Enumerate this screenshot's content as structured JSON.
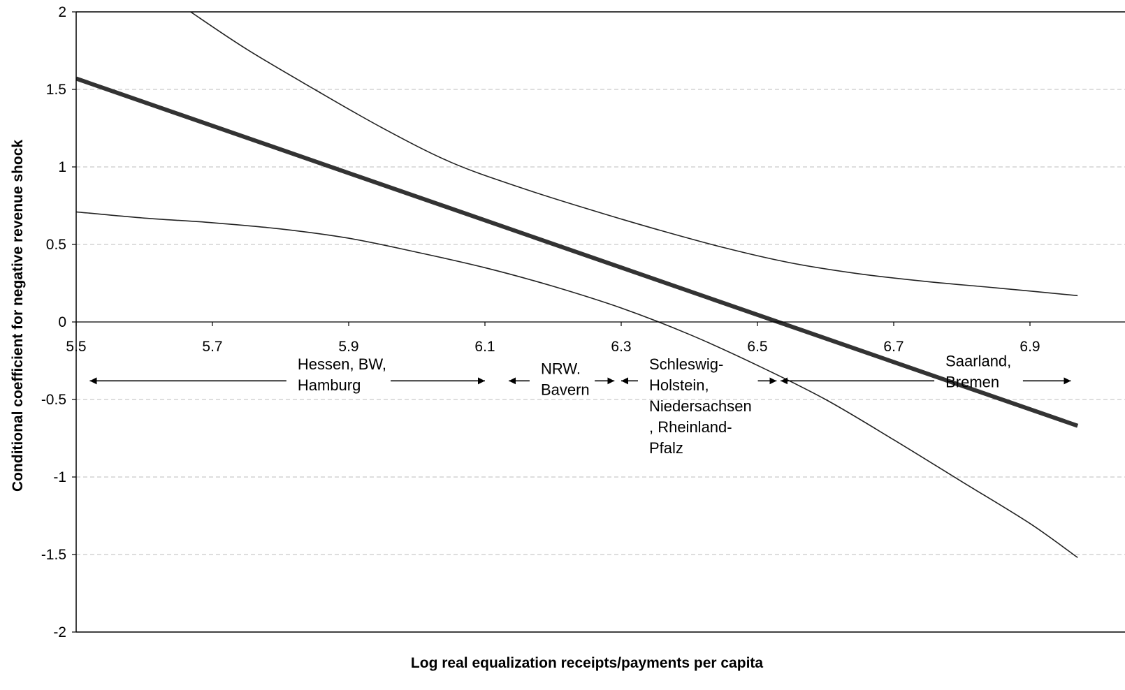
{
  "chart_data": {
    "type": "line",
    "title": "",
    "xlabel": "Log real equalization receipts/payments per capita",
    "ylabel": "Conditional coefficient for negative revenue shock",
    "xlim": [
      5.5,
      6.97
    ],
    "ylim": [
      -2,
      2
    ],
    "x_ticks": [
      "5.5",
      "5.7",
      "5.9",
      "6.1",
      "6.3",
      "6.5",
      "6.7",
      "6.9"
    ],
    "y_ticks": [
      "2",
      "1.5",
      "1",
      "0.5",
      "0",
      "-0.5",
      "-1",
      "-1.5",
      "-2"
    ],
    "grid": "horizontal dashed",
    "legend": "none",
    "series": [
      {
        "role": "estimate",
        "color": "#333333",
        "x": [
          5.5,
          6.97
        ],
        "y": [
          1.57,
          -0.67
        ]
      },
      {
        "role": "upper bound",
        "color": "#222222",
        "x": [
          5.668,
          5.75,
          5.85,
          5.95,
          6.05,
          6.15,
          6.25,
          6.35,
          6.45,
          6.55,
          6.65,
          6.75,
          6.85,
          6.97
        ],
        "y": [
          2.0,
          1.76,
          1.5,
          1.25,
          1.03,
          0.87,
          0.73,
          0.6,
          0.48,
          0.38,
          0.31,
          0.26,
          0.22,
          0.17
        ]
      },
      {
        "role": "lower bound",
        "color": "#222222",
        "x": [
          5.5,
          5.6,
          5.7,
          5.8,
          5.9,
          6.0,
          6.1,
          6.2,
          6.3,
          6.4,
          6.5,
          6.6,
          6.7,
          6.8,
          6.9,
          6.97
        ],
        "y": [
          0.71,
          0.67,
          0.64,
          0.6,
          0.54,
          0.45,
          0.35,
          0.23,
          0.09,
          -0.08,
          -0.28,
          -0.5,
          -0.76,
          -1.03,
          -1.3,
          -1.52
        ]
      }
    ],
    "annotations": [
      {
        "text": "Hessen, BW,\nHamburg",
        "from": 5.52,
        "to": 6.1,
        "label_x": 5.825,
        "label_y": -0.36,
        "arrow_y": -0.38
      },
      {
        "text": "NRW.\nBavern",
        "from": 6.135,
        "to": 6.29,
        "label_x": 6.182,
        "label_y": -0.39,
        "arrow_y": -0.38
      },
      {
        "text": "Schleswig-\nHolstein,\nNiedersachsen\n, Rheinland-\nPfalz",
        "from": 6.3,
        "to": 6.528,
        "label_x": 6.341,
        "label_y": -0.36,
        "arrow_y": -0.38
      },
      {
        "text": "Saarland,\nBremen",
        "from": 6.534,
        "to": 6.96,
        "label_x": 6.776,
        "label_y": -0.34,
        "arrow_y": -0.38
      }
    ]
  }
}
